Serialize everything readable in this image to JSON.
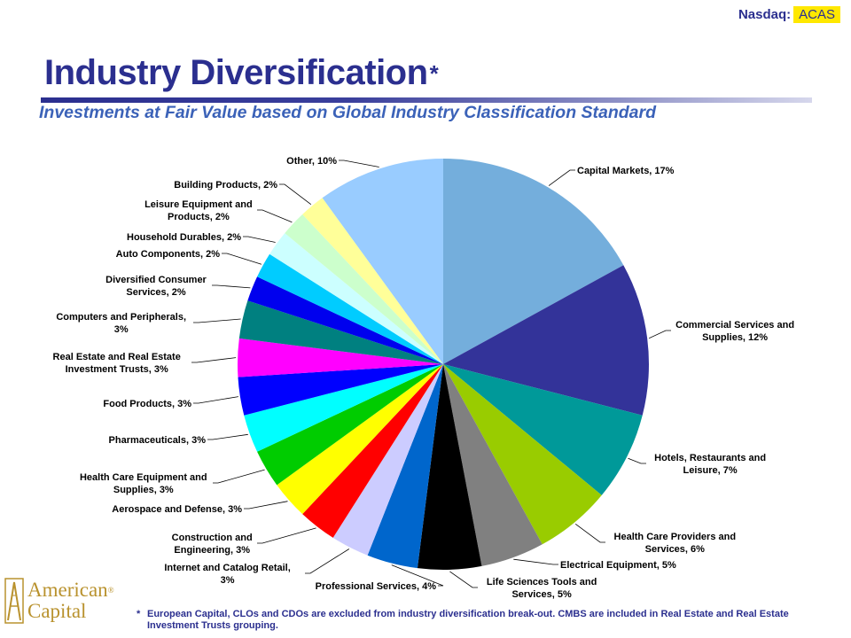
{
  "header": {
    "ticker_label": "Nasdaq:",
    "ticker_symbol": "ACAS",
    "title": "Industry Diversification",
    "title_mark": "*",
    "subtitle": "Investments at Fair Value based on Global Industry Classification Standard"
  },
  "logo": {
    "line1": "American",
    "line2": "Capital",
    "reg_mark": "®"
  },
  "footnote": {
    "mark": "*",
    "text": "European Capital, CLOs and CDOs are excluded from industry diversification break-out.  CMBS are included in Real Estate and Real Estate Investment Trusts grouping."
  },
  "chart_data": {
    "type": "pie",
    "unit": "%",
    "start": "12 o'clock",
    "direction": "clockwise",
    "slices": [
      {
        "label": [
          "Capital Markets, 17%"
        ],
        "value": 17,
        "color": "#74aedc"
      },
      {
        "label": [
          "Commercial Services and",
          "Supplies, 12%"
        ],
        "value": 12,
        "color": "#333399"
      },
      {
        "label": [
          "Hotels, Restaurants and",
          "Leisure, 7%"
        ],
        "value": 7,
        "color": "#009999"
      },
      {
        "label": [
          "Health Care Providers and",
          "Services, 6%"
        ],
        "value": 6,
        "color": "#99cc00"
      },
      {
        "label": [
          "Electrical Equipment, 5%"
        ],
        "value": 5,
        "color": "#808080"
      },
      {
        "label": [
          "Life Sciences Tools and",
          "Services, 5%"
        ],
        "value": 5,
        "color": "#000000"
      },
      {
        "label": [
          "Professional Services, 4%"
        ],
        "value": 4,
        "color": "#0066cc"
      },
      {
        "label": [
          "Internet and Catalog Retail,",
          "3%"
        ],
        "value": 3,
        "color": "#ccccff"
      },
      {
        "label": [
          "Construction and",
          "Engineering, 3%"
        ],
        "value": 3,
        "color": "#ff0000"
      },
      {
        "label": [
          "Aerospace and Defense, 3%"
        ],
        "value": 3,
        "color": "#ffff00"
      },
      {
        "label": [
          "Health Care Equipment and",
          "Supplies, 3%"
        ],
        "value": 3,
        "color": "#00cc00"
      },
      {
        "label": [
          "Pharmaceuticals, 3%"
        ],
        "value": 3,
        "color": "#00ffff"
      },
      {
        "label": [
          "Food Products, 3%"
        ],
        "value": 3,
        "color": "#0000ff"
      },
      {
        "label": [
          "Real Estate and Real Estate",
          "Investment Trusts, 3%"
        ],
        "value": 3,
        "color": "#ff00ff"
      },
      {
        "label": [
          "Computers and Peripherals,",
          "3%"
        ],
        "value": 3,
        "color": "#008080"
      },
      {
        "label": [
          "Diversified Consumer",
          "Services, 2%"
        ],
        "value": 2,
        "color": "#0000ee"
      },
      {
        "label": [
          "Auto Components, 2%"
        ],
        "value": 2,
        "color": "#00ccff"
      },
      {
        "label": [
          "Household Durables, 2%"
        ],
        "value": 2,
        "color": "#ccffff"
      },
      {
        "label": [
          "Leisure Equipment and",
          "Products, 2%"
        ],
        "value": 2,
        "color": "#ccffcc"
      },
      {
        "label": [
          "Building Products, 2%"
        ],
        "value": 2,
        "color": "#ffff99"
      },
      {
        "label": [
          "Other, 10%"
        ],
        "value": 10,
        "color": "#99ccff"
      }
    ]
  }
}
